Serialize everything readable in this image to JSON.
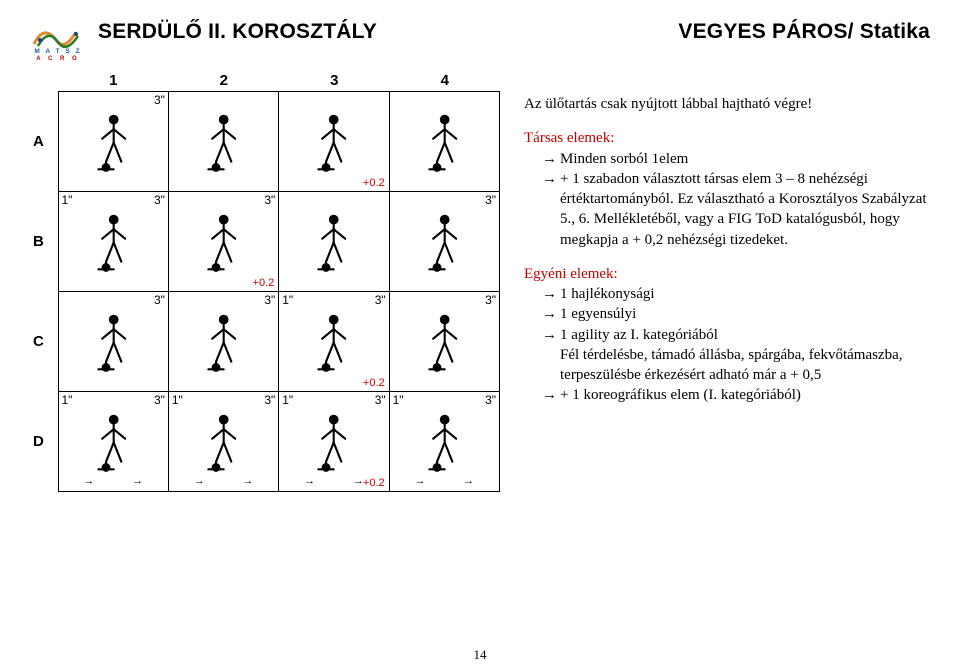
{
  "header": {
    "logo_text_top": "M A T S Z",
    "logo_text_bottom": "A C R O",
    "title_left": "SERDÜLŐ II. KOROSZTÁLY",
    "title_right": "VEGYES PÁROS/ Statika"
  },
  "table": {
    "col_numbers": [
      "1",
      "2",
      "3",
      "4"
    ],
    "rows": [
      {
        "label": "A",
        "cells": [
          {
            "l": "",
            "r": "3\"",
            "bonus": ""
          },
          {
            "l": "",
            "r": "",
            "bonus": ""
          },
          {
            "l": "",
            "r": "",
            "bonus": "+0.2"
          },
          {
            "l": "",
            "r": "",
            "bonus": ""
          }
        ]
      },
      {
        "label": "B",
        "cells": [
          {
            "l": "1\"",
            "r": "3\"",
            "bonus": ""
          },
          {
            "l": "",
            "r": "3\"",
            "bonus": "+0.2"
          },
          {
            "l": "",
            "r": "",
            "bonus": ""
          },
          {
            "l": "",
            "r": "3\"",
            "bonus": ""
          }
        ]
      },
      {
        "label": "C",
        "cells": [
          {
            "l": "",
            "r": "3\"",
            "bonus": ""
          },
          {
            "l": "",
            "r": "3\"",
            "bonus": ""
          },
          {
            "l": "1\"",
            "r": "3\"",
            "bonus": "+0.2"
          },
          {
            "l": "",
            "r": "3\"",
            "bonus": ""
          }
        ]
      },
      {
        "label": "D",
        "cells": [
          {
            "l": "1\"",
            "r": "3\"",
            "bonus": "",
            "arrows": true
          },
          {
            "l": "1\"",
            "r": "3\"",
            "bonus": "",
            "arrows": true
          },
          {
            "l": "1\"",
            "r": "3\"",
            "bonus": "+0.2",
            "arrows": true
          },
          {
            "l": "1\"",
            "r": "3\"",
            "bonus": "",
            "arrows": true
          }
        ]
      }
    ]
  },
  "right": {
    "lead": "Az ülőtartás csak nyújtott lábbal hajtható végre!",
    "section1_title": "Társas elemek:",
    "section1_items": [
      "Minden sorból 1elem",
      "+ 1 szabadon választott társas elem 3 – 8 nehézségi értéktartományból. Ez választható a Korosztályos Szabályzat 5., 6. Mellékletéből, vagy a FIG ToD katalógusból, hogy megkapja a + 0,2 nehézségi tizedeket."
    ],
    "section2_title": "Egyéni elemek:",
    "section2_items": [
      "1 hajlékonysági",
      "1 egyensúlyi",
      "1 agility az I. kategóriából\nFél térdelésbe, támadó állásba, spárgába, fekvőtámaszba, terpeszülésbe érkezésért adható már a + 0,5",
      "+ 1 koreográfikus elem (I. kategóriából)"
    ]
  },
  "page_number": "14",
  "colors": {
    "red": "#c00000",
    "bonus_red": "#d00000",
    "logo_orange": "#e08a2a",
    "logo_green": "#2a7a2a",
    "logo_blue": "#1a3e9a",
    "logo_textblue": "#1a5aa8"
  }
}
